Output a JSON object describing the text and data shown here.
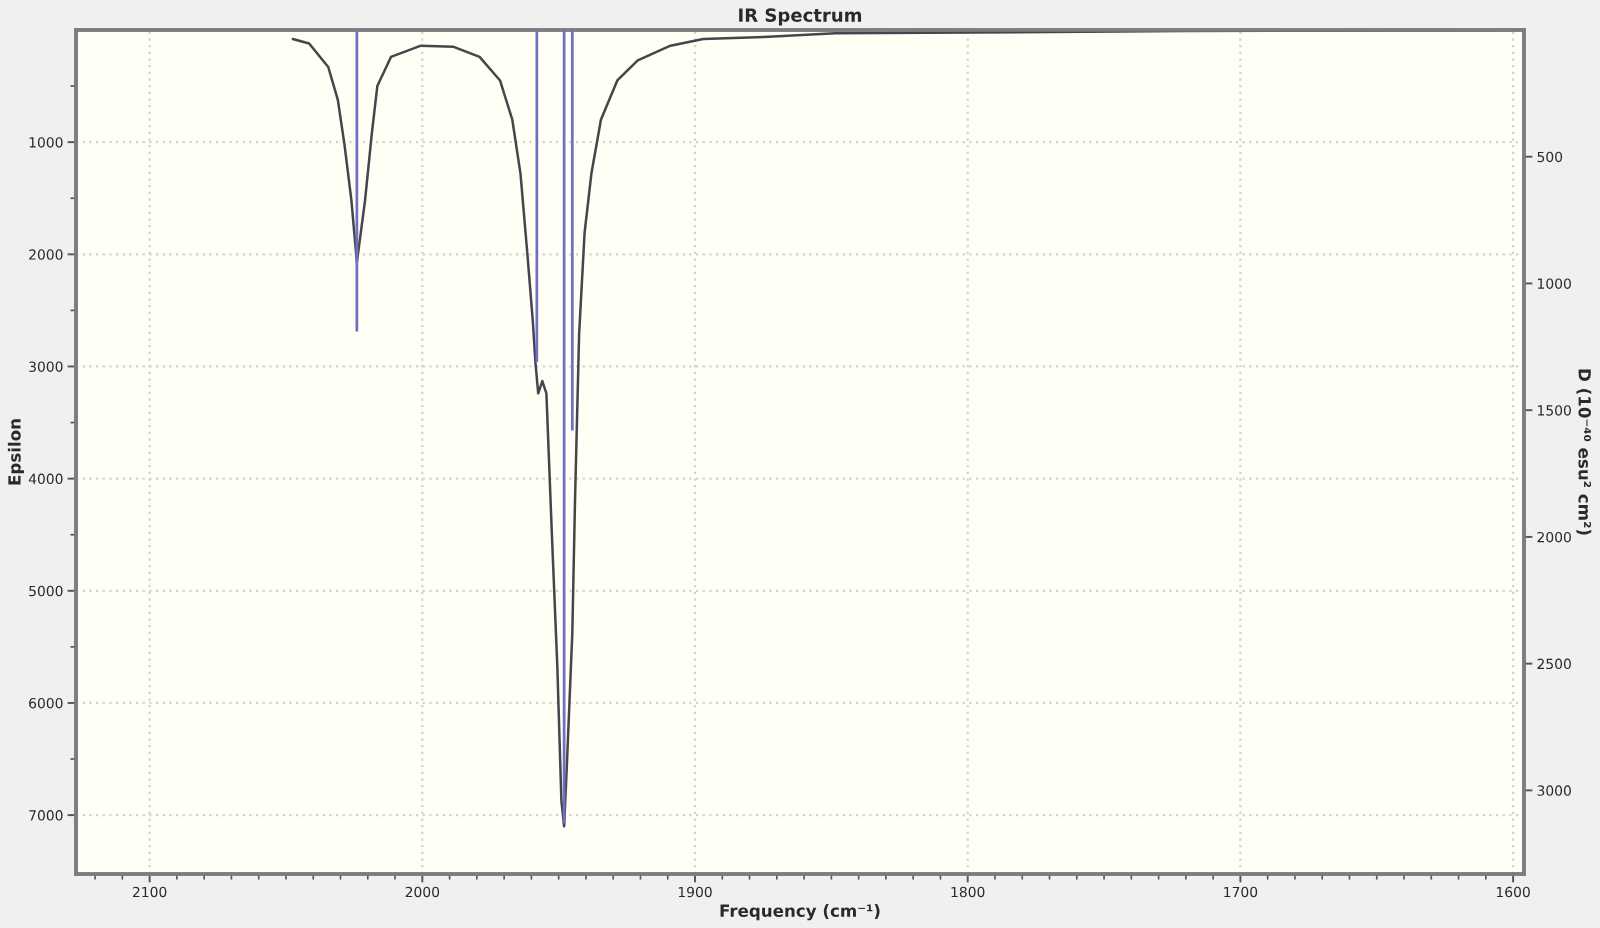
{
  "chart_data": {
    "type": "line",
    "title": "IR Spectrum",
    "xlabel": "Frequency (cm⁻¹)",
    "ylabel": "Epsilon",
    "y2label": "D (10⁻⁴⁰ esu² cm²)",
    "series": [
      {
        "color": "#45454d",
        "x": [
          2047.5,
          2041.5,
          2034.5,
          2031,
          2028.5,
          2026,
          2024,
          2021,
          2018.5,
          2016.5,
          2011.5,
          2000.5,
          1988.5,
          1979,
          1971.5,
          1967,
          1964,
          1961.5,
          1959.5,
          1958.5,
          1957.5,
          1956,
          1954.5,
          1952.5,
          1950.5,
          1949,
          1948,
          1947,
          1945,
          1944,
          1942.5,
          1940.5,
          1938,
          1934.5,
          1928.5,
          1921,
          1909,
          1897,
          1873,
          1848.5,
          1721,
          1600
        ],
        "values": [
          80,
          120,
          330,
          620,
          1030,
          1520,
          2070,
          1520,
          920,
          500,
          240,
          140,
          150,
          240,
          450,
          800,
          1280,
          1990,
          2590,
          2970,
          3240,
          3130,
          3240,
          4490,
          5670,
          6870,
          7100,
          6560,
          5380,
          4190,
          2710,
          1810,
          1280,
          800,
          450,
          270,
          140,
          80,
          60,
          30,
          10,
          0
        ]
      },
      {
        "type": "bar",
        "axis": "y2",
        "color": "#6f6fc4",
        "x": [
          2024,
          1958,
          1948,
          1945
        ],
        "values": [
          1190,
          1310,
          3130,
          1580
        ]
      }
    ],
    "xlim": [
      2127,
      1596
    ],
    "xticks": [
      {
        "value": 2120,
        "label": null
      },
      {
        "value": 2110,
        "label": null
      },
      2100,
      {
        "value": 2090,
        "label": null
      },
      {
        "value": 2080,
        "label": null
      },
      {
        "value": 2070,
        "label": null
      },
      {
        "value": 2060,
        "label": null
      },
      {
        "value": 2050,
        "label": null
      },
      {
        "value": 2040,
        "label": null
      },
      {
        "value": 2030,
        "label": null
      },
      {
        "value": 2020,
        "label": null
      },
      {
        "value": 2010,
        "label": null
      },
      2000,
      {
        "value": 1990,
        "label": null
      },
      {
        "value": 1980,
        "label": null
      },
      {
        "value": 1970,
        "label": null
      },
      {
        "value": 1960,
        "label": null
      },
      {
        "value": 1950,
        "label": null
      },
      {
        "value": 1940,
        "label": null
      },
      {
        "value": 1930,
        "label": null
      },
      {
        "value": 1920,
        "label": null
      },
      {
        "value": 1910,
        "label": null
      },
      1900,
      {
        "value": 1890,
        "label": null
      },
      {
        "value": 1880,
        "label": null
      },
      {
        "value": 1870,
        "label": null
      },
      {
        "value": 1860,
        "label": null
      },
      {
        "value": 1850,
        "label": null
      },
      {
        "value": 1840,
        "label": null
      },
      {
        "value": 1830,
        "label": null
      },
      {
        "value": 1820,
        "label": null
      },
      {
        "value": 1810,
        "label": null
      },
      1800,
      {
        "value": 1790,
        "label": null
      },
      {
        "value": 1780,
        "label": null
      },
      {
        "value": 1770,
        "label": null
      },
      {
        "value": 1760,
        "label": null
      },
      {
        "value": 1750,
        "label": null
      },
      {
        "value": 1740,
        "label": null
      },
      {
        "value": 1730,
        "label": null
      },
      {
        "value": 1720,
        "label": null
      },
      {
        "value": 1710,
        "label": null
      },
      1700,
      {
        "value": 1690,
        "label": null
      },
      {
        "value": 1680,
        "label": null
      },
      {
        "value": 1670,
        "label": null
      },
      {
        "value": 1660,
        "label": null
      },
      {
        "value": 1650,
        "label": null
      },
      {
        "value": 1640,
        "label": null
      },
      {
        "value": 1630,
        "label": null
      },
      {
        "value": 1620,
        "label": null
      },
      {
        "value": 1610,
        "label": null
      },
      1600
    ],
    "ylim": [
      7525,
      0
    ],
    "yticks": [
      {
        "value": 500,
        "label": null
      },
      1000,
      {
        "value": 1500,
        "label": null
      },
      2000,
      {
        "value": 2500,
        "label": null
      },
      3000,
      {
        "value": 3500,
        "label": null
      },
      4000,
      {
        "value": 4500,
        "label": null
      },
      5000,
      {
        "value": 5500,
        "label": null
      },
      6000,
      {
        "value": 6500,
        "label": null
      },
      7000
    ],
    "y2lim": [
      3330,
      0
    ],
    "y2ticks": [
      500,
      1000,
      1500,
      2000,
      2500,
      3000
    ],
    "grid": true
  }
}
